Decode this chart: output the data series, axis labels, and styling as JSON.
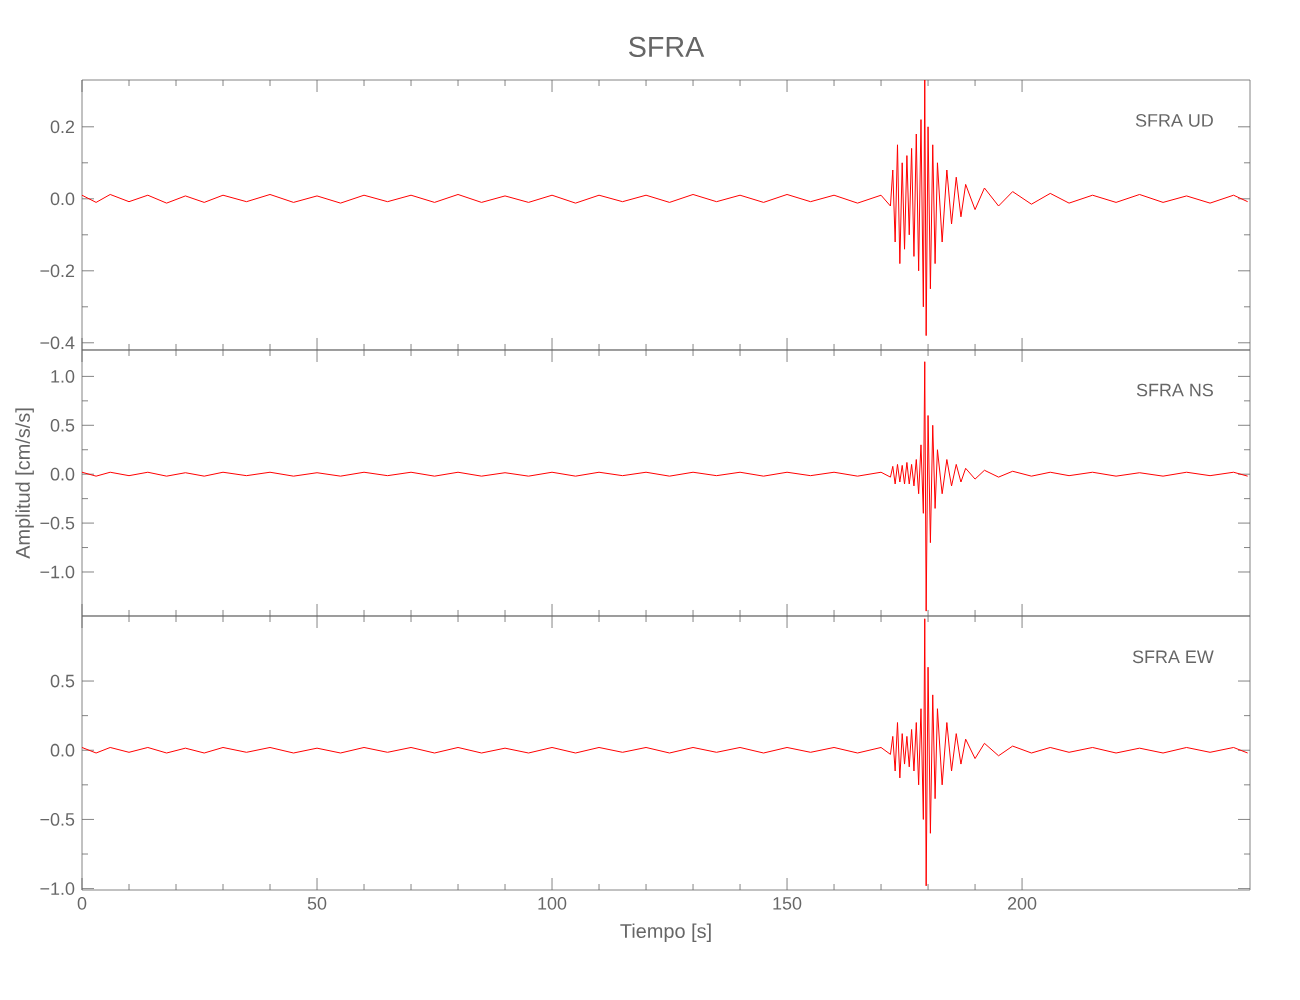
{
  "chart_data": [
    {
      "type": "line",
      "title": "SFRA",
      "annotations": [
        "SFRA UD"
      ],
      "xlim": [
        0,
        248.5
      ],
      "ylim": [
        -0.42,
        0.33
      ],
      "xticks": [
        0,
        50,
        100,
        150,
        200
      ],
      "yticks": [
        {
          "value": -0.4,
          "label": "−0.4"
        },
        {
          "value": -0.2,
          "label": "−0.2"
        },
        {
          "value": 0,
          "label": "0.0"
        },
        {
          "value": 0.2,
          "label": "0.2"
        }
      ],
      "tick_labels": "y",
      "series": [
        {
          "color": "#ff0000",
          "x": [
            0,
            3,
            6,
            10,
            14,
            18,
            22,
            26,
            30,
            35,
            40,
            45,
            50,
            55,
            60,
            65,
            70,
            75,
            80,
            85,
            90,
            95,
            100,
            105,
            110,
            115,
            120,
            125,
            130,
            135,
            140,
            145,
            150,
            155,
            160,
            165,
            170,
            172,
            172.5,
            173,
            173.5,
            174,
            174.5,
            175,
            175.5,
            176,
            176.5,
            177,
            177.5,
            178,
            178.5,
            179,
            179.3,
            179.6,
            180,
            180.5,
            181,
            181.5,
            182,
            183,
            184,
            185,
            186,
            187,
            188,
            190,
            192,
            195,
            198,
            202,
            206,
            210,
            215,
            220,
            225,
            230,
            235,
            240,
            245,
            248
          ],
          "values": [
            0.01,
            -0.01,
            0.012,
            -0.008,
            0.01,
            -0.012,
            0.008,
            -0.01,
            0.01,
            -0.008,
            0.012,
            -0.01,
            0.008,
            -0.012,
            0.01,
            -0.008,
            0.01,
            -0.01,
            0.012,
            -0.01,
            0.008,
            -0.01,
            0.01,
            -0.012,
            0.01,
            -0.008,
            0.01,
            -0.01,
            0.012,
            -0.008,
            0.01,
            -0.01,
            0.012,
            -0.008,
            0.01,
            -0.012,
            0.01,
            -0.02,
            0.08,
            -0.12,
            0.15,
            -0.18,
            0.1,
            -0.14,
            0.12,
            -0.1,
            0.14,
            -0.16,
            0.18,
            -0.2,
            0.22,
            -0.3,
            0.33,
            -0.38,
            0.2,
            -0.25,
            0.15,
            -0.18,
            0.1,
            -0.12,
            0.08,
            -0.07,
            0.06,
            -0.05,
            0.04,
            -0.03,
            0.03,
            -0.02,
            0.02,
            -0.015,
            0.015,
            -0.012,
            0.01,
            -0.01,
            0.012,
            -0.01,
            0.008,
            -0.012,
            0.01,
            -0.008
          ]
        }
      ]
    },
    {
      "type": "line",
      "ylabel": "Amplitud [cm/s/s]",
      "annotations": [
        "SFRA NS"
      ],
      "xlim": [
        0,
        248.5
      ],
      "ylim": [
        -1.45,
        1.27
      ],
      "xticks": [
        0,
        50,
        100,
        150,
        200
      ],
      "yticks": [
        {
          "value": -1.0,
          "label": "−1.0"
        },
        {
          "value": -0.5,
          "label": "−0.5"
        },
        {
          "value": 0,
          "label": "0.0"
        },
        {
          "value": 0.5,
          "label": "0.5"
        },
        {
          "value": 1.0,
          "label": "1.0"
        }
      ],
      "tick_labels": "y",
      "series": [
        {
          "color": "#ff0000",
          "x": [
            0,
            3,
            6,
            10,
            14,
            18,
            22,
            26,
            30,
            35,
            40,
            45,
            50,
            55,
            60,
            65,
            70,
            75,
            80,
            85,
            90,
            95,
            100,
            105,
            110,
            115,
            120,
            125,
            130,
            135,
            140,
            145,
            150,
            155,
            160,
            165,
            170,
            172,
            172.5,
            173,
            173.5,
            174,
            174.5,
            175,
            175.5,
            176,
            176.5,
            177,
            177.5,
            178,
            178.5,
            179,
            179.3,
            179.6,
            180,
            180.5,
            181,
            181.5,
            182,
            183,
            184,
            185,
            186,
            187,
            188,
            190,
            192,
            195,
            198,
            202,
            206,
            210,
            215,
            220,
            225,
            230,
            235,
            240,
            245,
            248
          ],
          "values": [
            0.02,
            -0.02,
            0.02,
            -0.015,
            0.02,
            -0.02,
            0.015,
            -0.02,
            0.02,
            -0.015,
            0.02,
            -0.02,
            0.015,
            -0.02,
            0.02,
            -0.015,
            0.02,
            -0.02,
            0.02,
            -0.02,
            0.015,
            -0.02,
            0.02,
            -0.02,
            0.02,
            -0.015,
            0.02,
            -0.02,
            0.02,
            -0.015,
            0.02,
            -0.02,
            0.02,
            -0.015,
            0.02,
            -0.02,
            0.02,
            -0.03,
            0.08,
            -0.1,
            0.1,
            -0.08,
            0.09,
            -0.1,
            0.12,
            -0.1,
            0.1,
            -0.12,
            0.15,
            -0.2,
            0.3,
            -0.4,
            1.15,
            -1.4,
            0.6,
            -0.7,
            0.5,
            -0.35,
            0.25,
            -0.2,
            0.15,
            -0.12,
            0.1,
            -0.08,
            0.06,
            -0.05,
            0.04,
            -0.03,
            0.03,
            -0.02,
            0.02,
            -0.015,
            0.02,
            -0.02,
            0.015,
            -0.02,
            0.02,
            -0.015,
            0.02,
            -0.02
          ]
        }
      ]
    },
    {
      "type": "line",
      "xlabel": "Tiempo [s]",
      "annotations": [
        "SFRA EW"
      ],
      "xlim": [
        0,
        248.5
      ],
      "ylim": [
        -1.01,
        0.97
      ],
      "xticks": [
        0,
        50,
        100,
        150,
        200
      ],
      "yticks": [
        {
          "value": -1.0,
          "label": "−1.0"
        },
        {
          "value": -0.5,
          "label": "−0.5"
        },
        {
          "value": 0,
          "label": "0.0"
        },
        {
          "value": 0.5,
          "label": "0.5"
        }
      ],
      "series": [
        {
          "color": "#ff0000",
          "x": [
            0,
            3,
            6,
            10,
            14,
            18,
            22,
            26,
            30,
            35,
            40,
            45,
            50,
            55,
            60,
            65,
            70,
            75,
            80,
            85,
            90,
            95,
            100,
            105,
            110,
            115,
            120,
            125,
            130,
            135,
            140,
            145,
            150,
            155,
            160,
            165,
            170,
            172,
            172.5,
            173,
            173.5,
            174,
            174.5,
            175,
            175.5,
            176,
            176.5,
            177,
            177.5,
            178,
            178.5,
            179,
            179.3,
            179.6,
            180,
            180.5,
            181,
            181.5,
            182,
            183,
            184,
            185,
            186,
            187,
            188,
            190,
            192,
            195,
            198,
            202,
            206,
            210,
            215,
            220,
            225,
            230,
            235,
            240,
            245,
            248
          ],
          "values": [
            0.02,
            -0.02,
            0.02,
            -0.015,
            0.02,
            -0.02,
            0.015,
            -0.02,
            0.02,
            -0.015,
            0.02,
            -0.02,
            0.015,
            -0.02,
            0.02,
            -0.015,
            0.02,
            -0.02,
            0.02,
            -0.02,
            0.015,
            -0.02,
            0.02,
            -0.02,
            0.02,
            -0.015,
            0.02,
            -0.02,
            0.02,
            -0.015,
            0.02,
            -0.02,
            0.02,
            -0.015,
            0.02,
            -0.02,
            0.02,
            -0.03,
            0.1,
            -0.15,
            0.2,
            -0.2,
            0.12,
            -0.1,
            0.1,
            -0.12,
            0.15,
            -0.15,
            0.2,
            -0.25,
            0.3,
            -0.5,
            0.95,
            -0.98,
            0.6,
            -0.6,
            0.4,
            -0.35,
            0.3,
            -0.25,
            0.2,
            -0.15,
            0.12,
            -0.1,
            0.08,
            -0.06,
            0.05,
            -0.04,
            0.03,
            -0.02,
            0.02,
            -0.015,
            0.02,
            -0.02,
            0.015,
            -0.02,
            0.02,
            -0.015,
            0.02,
            -0.02
          ]
        }
      ]
    }
  ]
}
